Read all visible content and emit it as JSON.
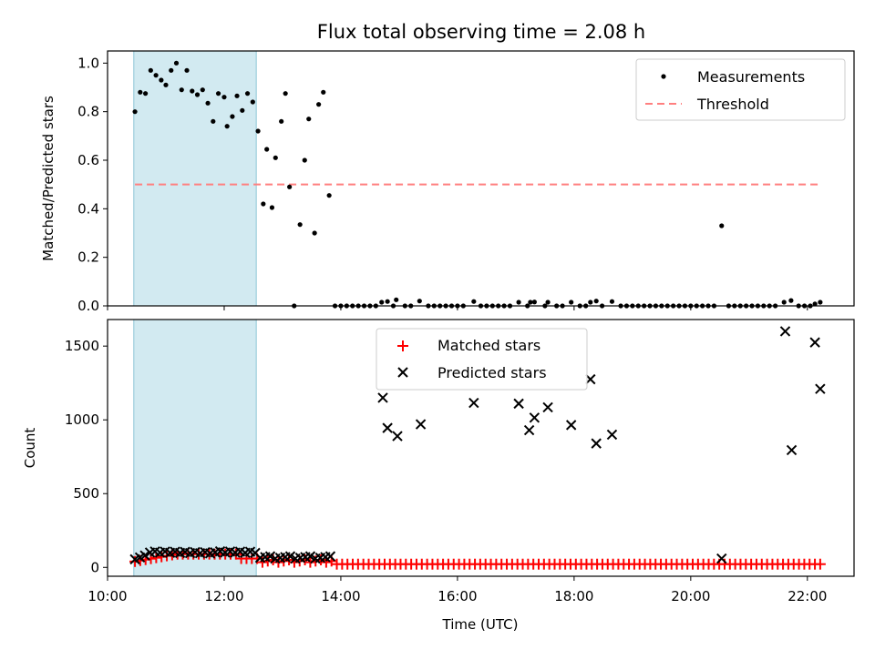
{
  "figure": {
    "title": "Flux total observing time = 2.08 h"
  },
  "colors": {
    "measurements": "#000000",
    "threshold": "#ff7f7f",
    "matched": "#ff0000",
    "predicted": "#000000",
    "span": "#add8e6"
  },
  "chart_data": [
    {
      "type": "scatter",
      "title": "Flux total observing time = 2.08 h",
      "xlabel": "",
      "ylabel": "Matched/Predicted stars",
      "xlim": [
        10.0,
        22.8
      ],
      "ylim": [
        0.0,
        1.05
      ],
      "grid": false,
      "legend_position": "top-right",
      "y_ticks": [
        "0.0",
        "0.2",
        "0.4",
        "0.6",
        "0.8",
        "1.0"
      ],
      "y_tick_values": [
        0.0,
        0.2,
        0.4,
        0.6,
        0.8,
        1.0
      ],
      "x_ticks": [
        10,
        12,
        14,
        16,
        18,
        20,
        22
      ],
      "shaded_interval": [
        10.45,
        12.55
      ],
      "series": [
        {
          "name": "Measurements",
          "kind": "points",
          "points": [
            [
              10.47,
              0.8
            ],
            [
              10.56,
              0.88
            ],
            [
              10.65,
              0.875
            ],
            [
              10.74,
              0.97
            ],
            [
              10.83,
              0.95
            ],
            [
              10.92,
              0.93
            ],
            [
              11.0,
              0.91
            ],
            [
              11.09,
              0.97
            ],
            [
              11.18,
              1.0
            ],
            [
              11.27,
              0.89
            ],
            [
              11.36,
              0.97
            ],
            [
              11.45,
              0.885
            ],
            [
              11.54,
              0.87
            ],
            [
              11.63,
              0.89
            ],
            [
              11.72,
              0.835
            ],
            [
              11.81,
              0.76
            ],
            [
              11.9,
              0.875
            ],
            [
              12.0,
              0.86
            ],
            [
              12.05,
              0.74
            ],
            [
              12.14,
              0.78
            ],
            [
              12.22,
              0.865
            ],
            [
              12.31,
              0.805
            ],
            [
              12.4,
              0.875
            ],
            [
              12.49,
              0.84
            ],
            [
              12.58,
              0.72
            ],
            [
              12.67,
              0.42
            ],
            [
              12.73,
              0.645
            ],
            [
              12.82,
              0.405
            ],
            [
              12.88,
              0.61
            ],
            [
              12.98,
              0.76
            ],
            [
              13.05,
              0.875
            ],
            [
              13.12,
              0.49
            ],
            [
              13.2,
              0.0
            ],
            [
              13.3,
              0.335
            ],
            [
              13.38,
              0.6
            ],
            [
              13.45,
              0.77
            ],
            [
              13.55,
              0.3
            ],
            [
              13.62,
              0.83
            ],
            [
              13.7,
              0.88
            ],
            [
              13.8,
              0.455
            ],
            [
              13.9,
              0.0
            ],
            [
              14.0,
              0.0
            ],
            [
              14.1,
              0.0
            ],
            [
              14.2,
              0.0
            ],
            [
              14.3,
              0.0
            ],
            [
              14.4,
              0.0
            ],
            [
              14.5,
              0.0
            ],
            [
              14.6,
              0.0
            ],
            [
              14.7,
              0.015
            ],
            [
              14.8,
              0.018
            ],
            [
              14.9,
              0.0
            ],
            [
              14.95,
              0.025
            ],
            [
              15.1,
              0.0
            ],
            [
              15.2,
              0.0
            ],
            [
              15.35,
              0.02
            ],
            [
              15.5,
              0.0
            ],
            [
              15.6,
              0.0
            ],
            [
              15.7,
              0.0
            ],
            [
              15.8,
              0.0
            ],
            [
              15.9,
              0.0
            ],
            [
              16.0,
              0.0
            ],
            [
              16.1,
              0.0
            ],
            [
              16.28,
              0.018
            ],
            [
              16.4,
              0.0
            ],
            [
              16.5,
              0.0
            ],
            [
              16.6,
              0.0
            ],
            [
              16.7,
              0.0
            ],
            [
              16.8,
              0.0
            ],
            [
              16.9,
              0.0
            ],
            [
              17.05,
              0.015
            ],
            [
              17.2,
              0.0
            ],
            [
              17.25,
              0.015
            ],
            [
              17.32,
              0.016
            ],
            [
              17.5,
              0.0
            ],
            [
              17.55,
              0.015
            ],
            [
              17.7,
              0.0
            ],
            [
              17.8,
              0.0
            ],
            [
              17.95,
              0.015
            ],
            [
              18.1,
              0.0
            ],
            [
              18.2,
              0.0
            ],
            [
              18.28,
              0.015
            ],
            [
              18.38,
              0.02
            ],
            [
              18.48,
              0.0
            ],
            [
              18.65,
              0.018
            ],
            [
              18.8,
              0.0
            ],
            [
              18.9,
              0.0
            ],
            [
              19.0,
              0.0
            ],
            [
              19.1,
              0.0
            ],
            [
              19.2,
              0.0
            ],
            [
              19.3,
              0.0
            ],
            [
              19.4,
              0.0
            ],
            [
              19.5,
              0.0
            ],
            [
              19.6,
              0.0
            ],
            [
              19.7,
              0.0
            ],
            [
              19.8,
              0.0
            ],
            [
              19.9,
              0.0
            ],
            [
              20.0,
              0.0
            ],
            [
              20.1,
              0.0
            ],
            [
              20.2,
              0.0
            ],
            [
              20.3,
              0.0
            ],
            [
              20.4,
              0.0
            ],
            [
              20.53,
              0.33
            ],
            [
              20.65,
              0.0
            ],
            [
              20.75,
              0.0
            ],
            [
              20.85,
              0.0
            ],
            [
              20.95,
              0.0
            ],
            [
              21.05,
              0.0
            ],
            [
              21.15,
              0.0
            ],
            [
              21.25,
              0.0
            ],
            [
              21.35,
              0.0
            ],
            [
              21.45,
              0.0
            ],
            [
              21.6,
              0.015
            ],
            [
              21.72,
              0.022
            ],
            [
              21.85,
              0.0
            ],
            [
              21.95,
              0.0
            ],
            [
              22.05,
              0.0
            ],
            [
              22.13,
              0.008
            ],
            [
              22.22,
              0.015
            ]
          ]
        },
        {
          "name": "Threshold",
          "kind": "dashed-line",
          "x": [
            10.47,
            22.22
          ],
          "y": [
            0.5,
            0.5
          ]
        }
      ]
    },
    {
      "type": "scatter",
      "title": "",
      "xlabel": "Time (UTC)",
      "ylabel": "Count",
      "xlim": [
        10.0,
        22.8
      ],
      "ylim": [
        -60,
        1680
      ],
      "grid": false,
      "legend_position": "top-center",
      "y_ticks": [
        "0",
        "500",
        "1000",
        "1500"
      ],
      "y_tick_values": [
        0,
        500,
        1000,
        1500
      ],
      "x_ticks": [
        "10:00",
        "12:00",
        "14:00",
        "16:00",
        "18:00",
        "20:00",
        "22:00"
      ],
      "x_tick_values": [
        10,
        12,
        14,
        16,
        18,
        20,
        22
      ],
      "shaded_interval": [
        10.45,
        12.55
      ],
      "series": [
        {
          "name": "Matched stars",
          "kind": "plus",
          "x_start": 10.47,
          "x_end": 22.22,
          "count": 130,
          "early_until": 12.6,
          "early_values": [
            40,
            90
          ],
          "late_value": 22
        },
        {
          "name": "Predicted stars",
          "kind": "cross",
          "cluster": {
            "x_start": 10.47,
            "x_end": 13.82,
            "count": 40,
            "values": [
              55,
              110
            ]
          },
          "points": [
            [
              14.72,
              1150
            ],
            [
              14.8,
              945
            ],
            [
              14.97,
              890
            ],
            [
              15.37,
              970
            ],
            [
              16.28,
              1115
            ],
            [
              17.05,
              1110
            ],
            [
              17.23,
              930
            ],
            [
              17.32,
              1015
            ],
            [
              17.55,
              1085
            ],
            [
              17.95,
              965
            ],
            [
              18.28,
              1275
            ],
            [
              18.38,
              840
            ],
            [
              18.65,
              900
            ],
            [
              20.53,
              60
            ],
            [
              21.62,
              1600
            ],
            [
              21.73,
              795
            ],
            [
              22.13,
              1525
            ],
            [
              22.22,
              1210
            ]
          ]
        }
      ]
    }
  ]
}
